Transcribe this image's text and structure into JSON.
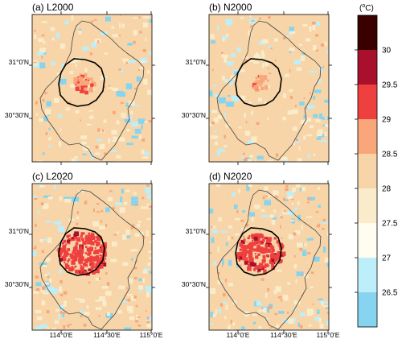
{
  "panels": [
    {
      "id": "a",
      "title": "(a) L2000",
      "scenario": "L2000"
    },
    {
      "id": "b",
      "title": "(b) N2000",
      "scenario": "N2000"
    },
    {
      "id": "c",
      "title": "(c) L2020",
      "scenario": "L2020"
    },
    {
      "id": "d",
      "title": "(d) N2020",
      "scenario": "N2020"
    }
  ],
  "axes": {
    "lat_ticks": [
      "31°0'N",
      "30°30'N"
    ],
    "lon_ticks": [
      "114°0'E",
      "114°30'E",
      "115°0'E"
    ]
  },
  "colorbar": {
    "unit_base": "(",
    "unit_sup": "o",
    "unit_rest": "C)",
    "tick_labels": [
      "30",
      "29.5",
      "29",
      "28.5",
      "28",
      "27.5",
      "27",
      "26.5"
    ],
    "classes": [
      {
        "lower": 30.0,
        "color": "#3a0000"
      },
      {
        "lower": 29.5,
        "color": "#a8102b"
      },
      {
        "lower": 29.0,
        "color": "#ef4040"
      },
      {
        "lower": 28.5,
        "color": "#f9a67a"
      },
      {
        "lower": 28.0,
        "color": "#f7d5a8"
      },
      {
        "lower": 27.5,
        "color": "#faeccb"
      },
      {
        "lower": 27.0,
        "color": "#fffdf0"
      },
      {
        "lower": 26.5,
        "color": "#bdeffb"
      },
      {
        "lower": 26.0,
        "color": "#86d4ef"
      }
    ]
  },
  "colors": {
    "water": "#86d4ef",
    "water_light": "#bdeffb",
    "base": "#f7d5a8",
    "base_light": "#faeccb",
    "warm": "#f9a67a",
    "hot": "#ef4040",
    "very_hot": "#a8102b"
  }
}
